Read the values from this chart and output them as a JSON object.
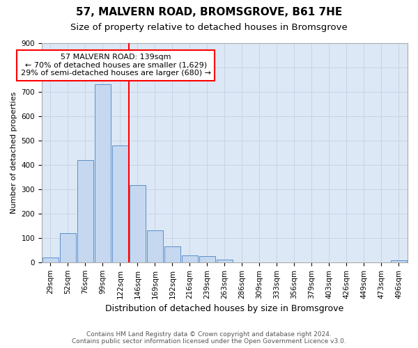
{
  "title1": "57, MALVERN ROAD, BROMSGROVE, B61 7HE",
  "title2": "Size of property relative to detached houses in Bromsgrove",
  "xlabel": "Distribution of detached houses by size in Bromsgrove",
  "ylabel": "Number of detached properties",
  "bar_labels": [
    "29sqm",
    "52sqm",
    "76sqm",
    "99sqm",
    "122sqm",
    "146sqm",
    "169sqm",
    "192sqm",
    "216sqm",
    "239sqm",
    "263sqm",
    "286sqm",
    "309sqm",
    "333sqm",
    "356sqm",
    "379sqm",
    "403sqm",
    "426sqm",
    "449sqm",
    "473sqm",
    "496sqm"
  ],
  "bar_values": [
    20,
    120,
    420,
    730,
    480,
    315,
    130,
    65,
    28,
    25,
    10,
    0,
    0,
    0,
    0,
    0,
    0,
    0,
    0,
    0,
    8
  ],
  "bar_color": "#c5d8f0",
  "bar_edge_color": "#5b8fc9",
  "grid_color": "#c8d4e8",
  "background_color": "#dce8f5",
  "annotation_line1": "57 MALVERN ROAD: 139sqm",
  "annotation_line2": "← 70% of detached houses are smaller (1,629)",
  "annotation_line3": "29% of semi-detached houses are larger (680) →",
  "annotation_box_color": "white",
  "annotation_box_edge_color": "red",
  "vline_color": "red",
  "vline_x_index": 5,
  "ylim": [
    0,
    900
  ],
  "yticks": [
    0,
    100,
    200,
    300,
    400,
    500,
    600,
    700,
    800,
    900
  ],
  "footnote1": "Contains HM Land Registry data © Crown copyright and database right 2024.",
  "footnote2": "Contains public sector information licensed under the Open Government Licence v3.0.",
  "title1_fontsize": 11,
  "title2_fontsize": 9.5,
  "xlabel_fontsize": 9,
  "ylabel_fontsize": 8,
  "tick_fontsize": 7.5,
  "footnote_fontsize": 6.5
}
